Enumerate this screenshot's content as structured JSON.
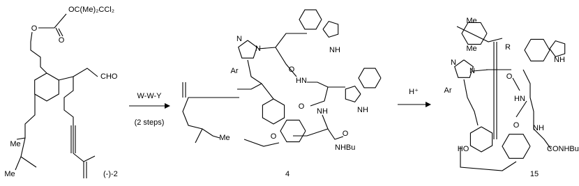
{
  "compounds": [
    {
      "label": "(-)-2",
      "atoms": [
        "OC(Me)₂CCl₂",
        "O",
        "O",
        "CHO",
        "Me",
        "Me"
      ]
    },
    {
      "label": "4",
      "atoms": [
        "N",
        "N",
        "Ar",
        "NH",
        "O",
        "HN",
        "NH",
        "O",
        "NH",
        "O",
        "NHBu",
        "O",
        "Me"
      ]
    },
    {
      "label": "15",
      "atoms": [
        "Me",
        "Me",
        "R",
        "NH",
        "N",
        "N",
        "Ar",
        "O",
        "HN",
        "O",
        "NH",
        "CONHBu",
        "HO"
      ]
    }
  ],
  "arrows": [
    {
      "reagents": [
        "W-W-Y",
        "(2 steps)"
      ]
    },
    {
      "reagents": [
        "H⁺"
      ]
    }
  ]
}
